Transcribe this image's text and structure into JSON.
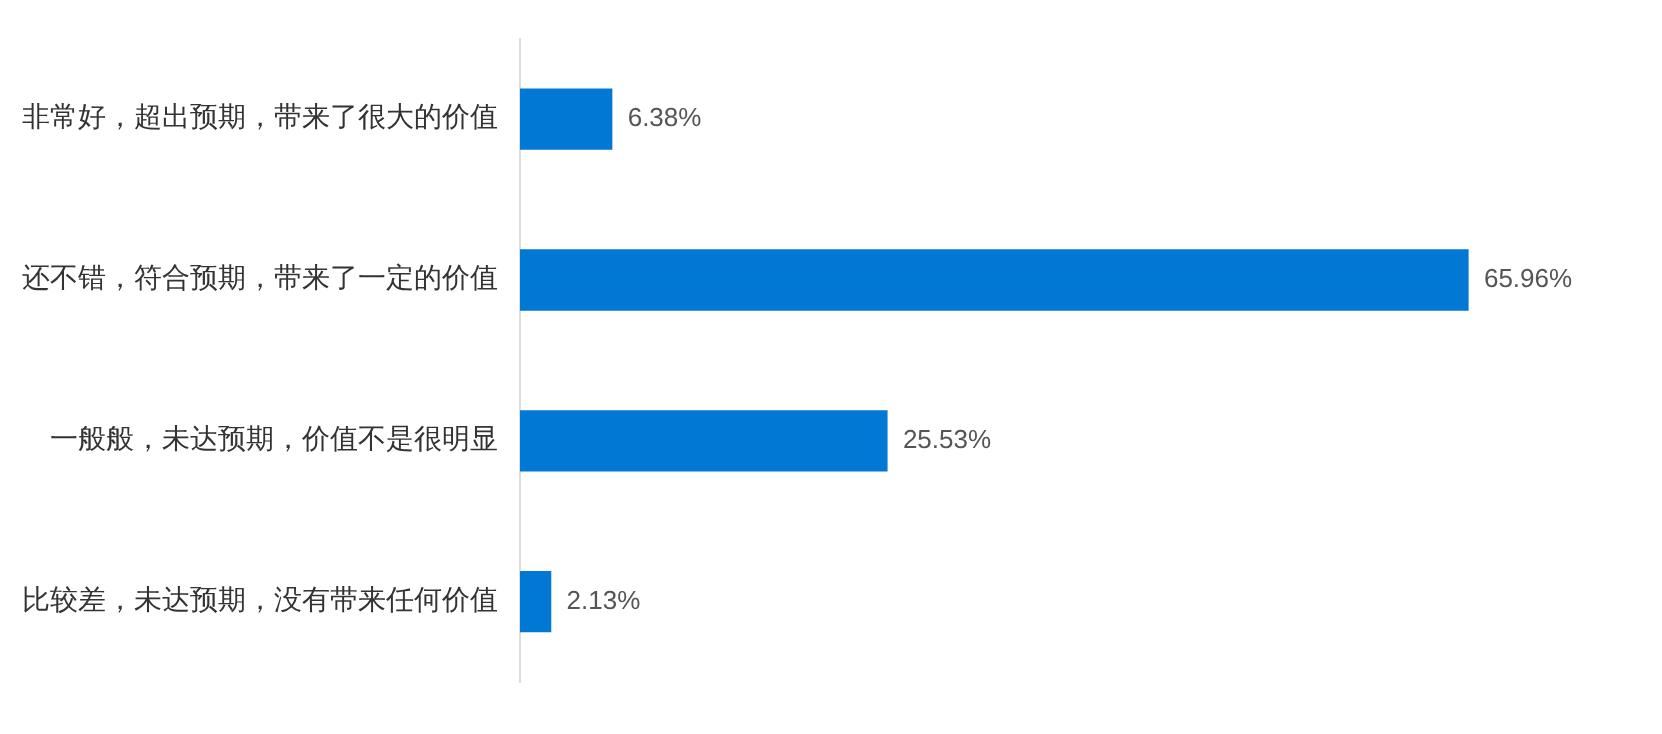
{
  "chart_data": {
    "type": "bar",
    "orientation": "horizontal",
    "categories": [
      "非常好，超出预期，带来了很大的价值",
      "还不错，符合预期，带来了一定的价值",
      "一般般，未达预期，价值不是很明显",
      "比较差，未达预期，没有带来任何价值"
    ],
    "values": [
      6.38,
      65.96,
      25.53,
      2.13
    ],
    "value_labels": [
      "6.38%",
      "65.96%",
      "25.53%",
      "2.13%"
    ],
    "color": "#0078d4",
    "grid": false,
    "legend": false,
    "tick_labels": "y"
  }
}
